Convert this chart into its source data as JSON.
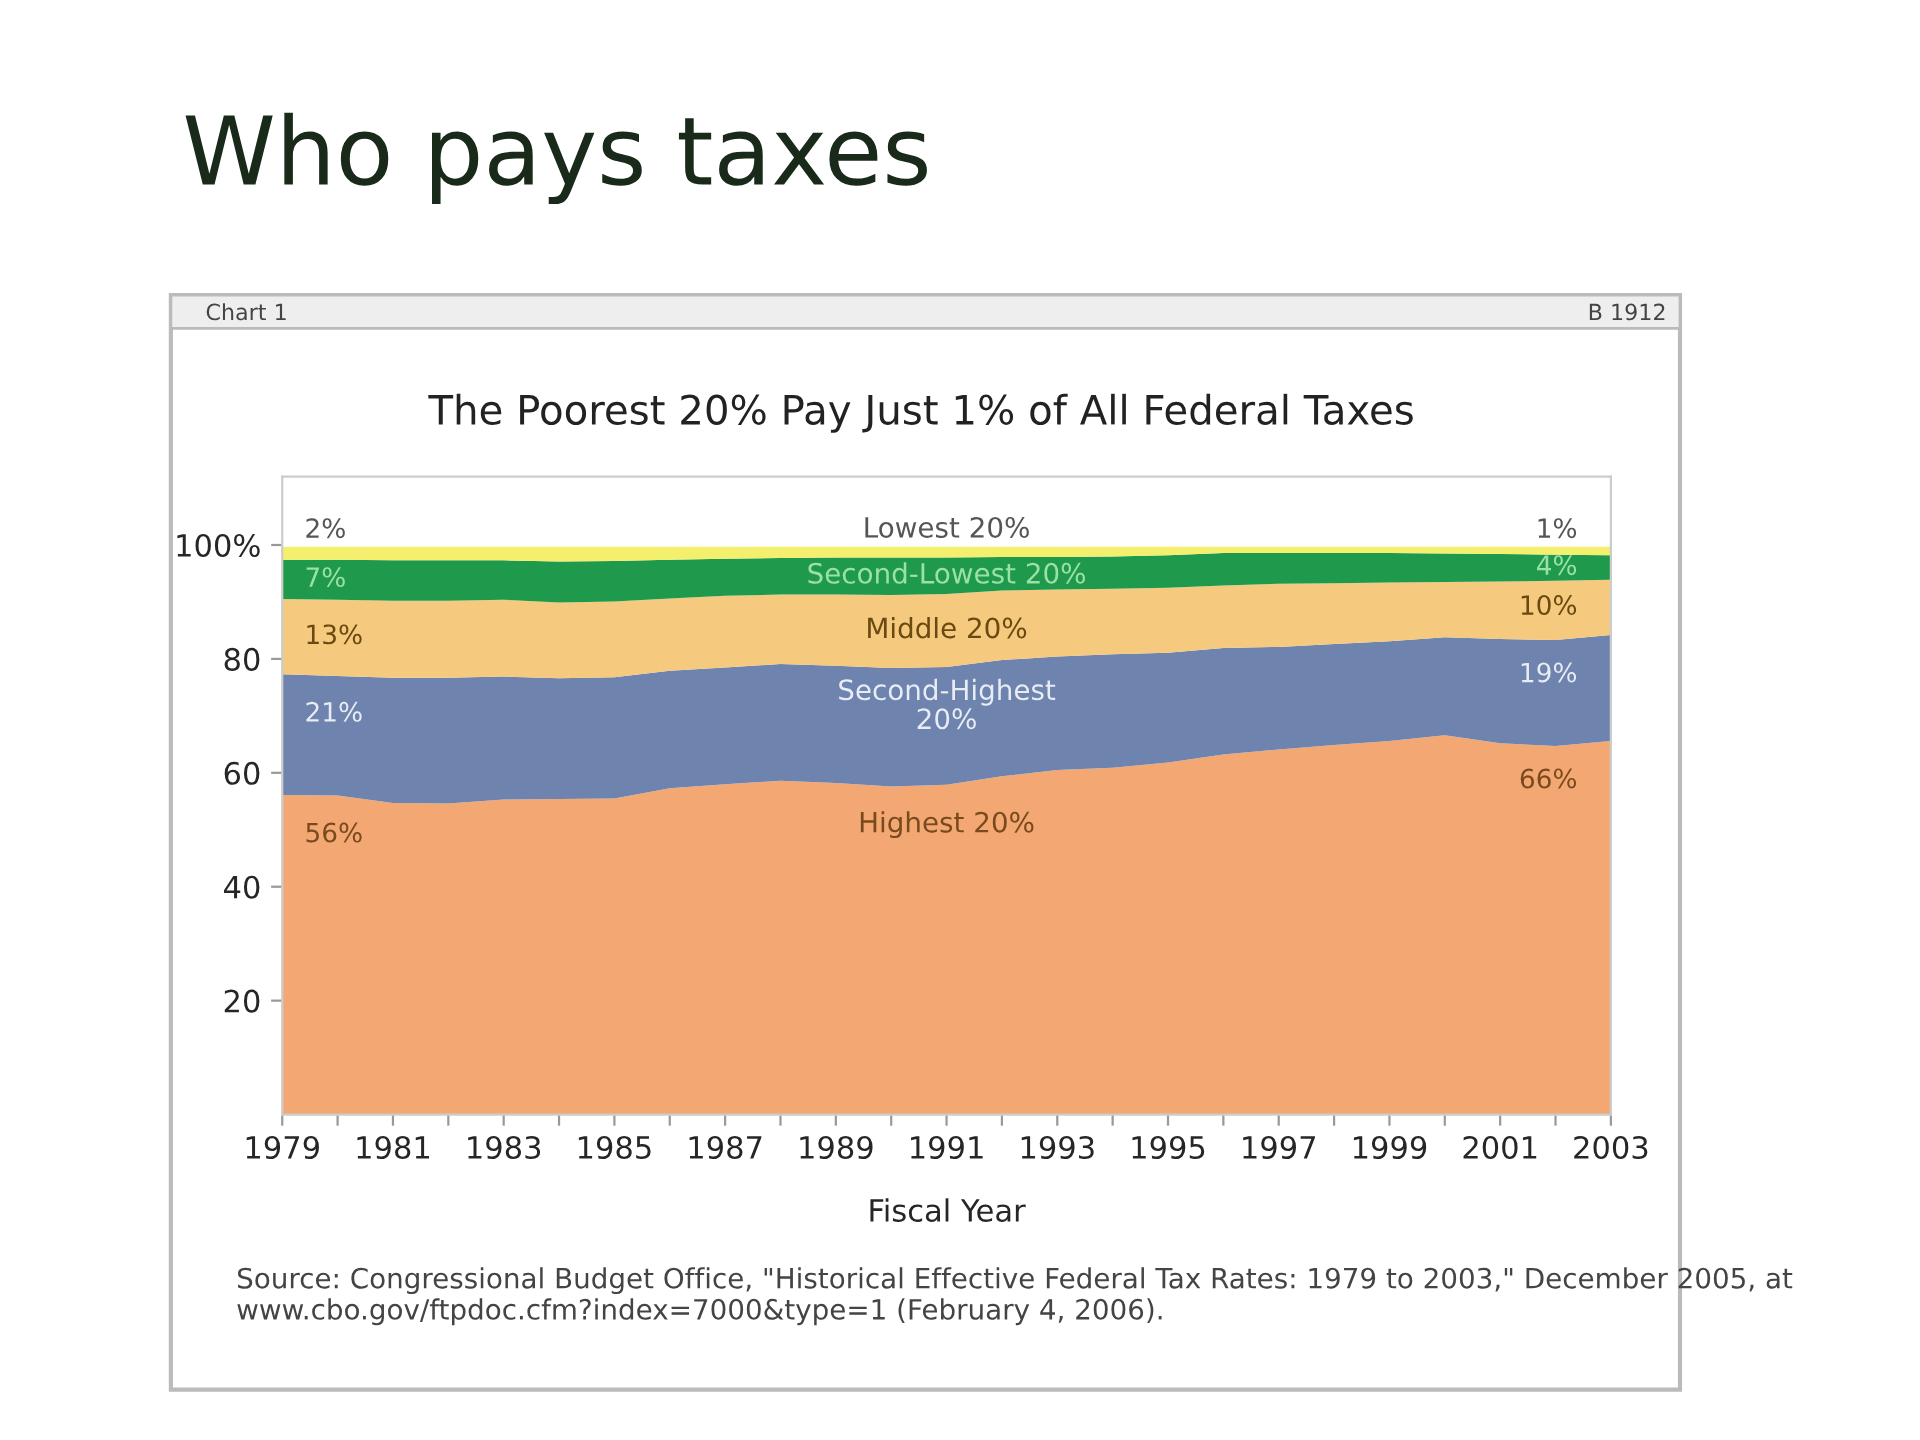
{
  "chart_data": {
    "type": "area",
    "stacked": true,
    "title": "Who pays taxes",
    "subtitle": "The Poorest 20% Pay Just 1% of All Federal Taxes",
    "xlabel": "Fiscal Year",
    "x": [
      1979,
      1980,
      1981,
      1982,
      1983,
      1984,
      1985,
      1986,
      1987,
      1988,
      1989,
      1990,
      1991,
      1992,
      1993,
      1994,
      1995,
      1996,
      1997,
      1998,
      1999,
      2000,
      2001,
      2002,
      2003
    ],
    "xlim": [
      1979,
      2003
    ],
    "xticks": [
      1979,
      {
        "value": 1980,
        "label": null
      },
      1981,
      {
        "value": 1982,
        "label": null
      },
      1983,
      {
        "value": 1984,
        "label": null
      },
      1985,
      {
        "value": 1986,
        "label": null
      },
      1987,
      {
        "value": 1988,
        "label": null
      },
      1989,
      {
        "value": 1990,
        "label": null
      },
      1991,
      {
        "value": 1992,
        "label": null
      },
      1993,
      {
        "value": 1994,
        "label": null
      },
      1995,
      {
        "value": 1996,
        "label": null
      },
      1997,
      {
        "value": 1998,
        "label": null
      },
      1999,
      {
        "value": 2000,
        "label": null
      },
      2001,
      {
        "value": 2002,
        "label": null
      },
      2003
    ],
    "ylim": [
      0,
      112
    ],
    "yticks": [
      20,
      40,
      60,
      80,
      {
        "value": 100,
        "label": "100%"
      }
    ],
    "series": [
      {
        "name": "Highest 20%",
        "color": "#f3a874",
        "values": [
          56.1,
          56.0,
          54.7,
          54.6,
          55.3,
          55.4,
          55.5,
          57.3,
          58.0,
          58.6,
          58.2,
          57.6,
          57.9,
          59.4,
          60.5,
          60.9,
          61.8,
          63.2,
          64.1,
          64.9,
          65.6,
          66.6,
          65.2,
          64.7,
          65.6
        ],
        "value_labels": [
          "56%",
          null,
          null,
          null,
          null,
          null,
          null,
          null,
          null,
          null,
          null,
          null,
          null,
          null,
          null,
          null,
          null,
          null,
          null,
          null,
          null,
          null,
          null,
          null,
          "66%"
        ]
      },
      {
        "name": "Second-Highest\n20%",
        "color": "#6e84ae",
        "values": [
          21.2,
          21.0,
          22.0,
          22.1,
          21.6,
          21.2,
          21.3,
          20.6,
          20.5,
          20.5,
          20.6,
          20.8,
          20.7,
          20.4,
          19.9,
          19.9,
          19.3,
          18.7,
          18.0,
          17.7,
          17.5,
          17.2,
          18.3,
          18.6,
          18.6
        ],
        "value_labels": [
          "21%",
          null,
          null,
          null,
          null,
          null,
          null,
          null,
          null,
          null,
          null,
          null,
          null,
          null,
          null,
          null,
          null,
          null,
          null,
          null,
          null,
          null,
          null,
          null,
          "19%"
        ]
      },
      {
        "name": "Middle 20%",
        "color": "#f5c97e",
        "values": [
          13.2,
          13.4,
          13.5,
          13.5,
          13.5,
          13.3,
          13.3,
          12.7,
          12.6,
          12.2,
          12.5,
          12.8,
          12.8,
          12.2,
          11.8,
          11.5,
          11.4,
          11.0,
          11.1,
          10.7,
          10.3,
          9.7,
          10.1,
          10.4,
          9.7
        ],
        "value_labels": [
          "13%",
          null,
          null,
          null,
          null,
          null,
          null,
          null,
          null,
          null,
          null,
          null,
          null,
          null,
          null,
          null,
          null,
          null,
          null,
          null,
          null,
          null,
          null,
          null,
          "10%"
        ]
      },
      {
        "name": "Second-Lowest 20%",
        "color": "#1f9a4c",
        "values": [
          6.9,
          7.0,
          7.1,
          7.1,
          6.9,
          7.2,
          7.1,
          6.8,
          6.5,
          6.4,
          6.5,
          6.6,
          6.4,
          5.9,
          5.7,
          5.7,
          5.7,
          5.7,
          5.4,
          5.3,
          5.2,
          5.0,
          4.8,
          4.6,
          4.3
        ],
        "value_labels": [
          "7%",
          null,
          null,
          null,
          null,
          null,
          null,
          null,
          null,
          null,
          null,
          null,
          null,
          null,
          null,
          null,
          null,
          null,
          null,
          null,
          null,
          null,
          null,
          null,
          "4%"
        ]
      },
      {
        "name": "Lowest 20%",
        "color": "#f5ef6e",
        "values": [
          2.3,
          2.3,
          2.4,
          2.4,
          2.4,
          2.6,
          2.5,
          2.3,
          2.1,
          2.0,
          1.9,
          1.9,
          1.9,
          1.8,
          1.8,
          1.7,
          1.5,
          1.1,
          1.1,
          1.1,
          1.1,
          1.2,
          1.3,
          1.4,
          1.5
        ],
        "value_labels": [
          "2%",
          null,
          null,
          null,
          null,
          null,
          null,
          null,
          null,
          null,
          null,
          null,
          null,
          null,
          null,
          null,
          null,
          null,
          null,
          null,
          null,
          null,
          null,
          null,
          "1%"
        ]
      }
    ],
    "annotations": [
      "Chart 1",
      "B 1912",
      "Source: Congressional Budget Office, \"Historical Effective Federal Tax Rates: 1979 to 2003,\" December 2005, at www.cbo.gov/ftpdoc.cfm?index=7000&type=1 (February 4, 2006)."
    ]
  }
}
